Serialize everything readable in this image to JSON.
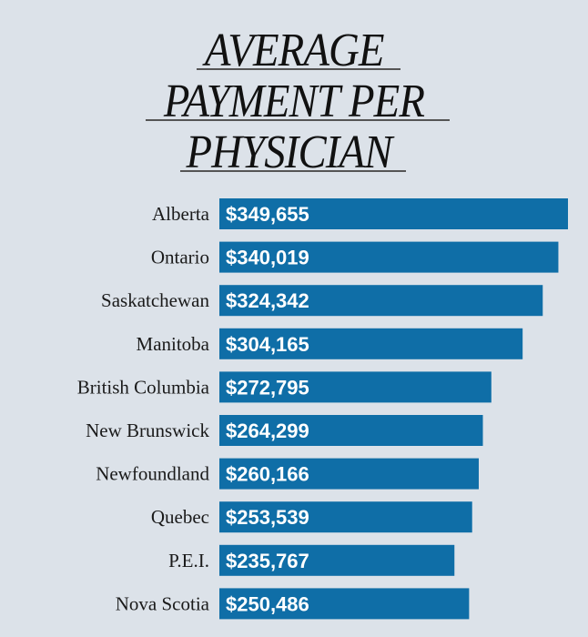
{
  "chart_data": {
    "type": "bar",
    "orientation": "horizontal",
    "title": "AVERAGE PAYMENT PER PHYSICIAN",
    "title_lines": [
      "AVERAGE",
      "PAYMENT PER",
      "PHYSICIAN"
    ],
    "categories": [
      "Alberta",
      "Ontario",
      "Saskatchewan",
      "Manitoba",
      "British Columbia",
      "New Brunswick",
      "Newfoundland",
      "Quebec",
      "P.E.I.",
      "Nova Scotia"
    ],
    "values": [
      349655,
      340019,
      324342,
      304165,
      272795,
      264299,
      260166,
      253539,
      235767,
      250486
    ],
    "value_labels": [
      "$349,655",
      "$340,019",
      "$324,342",
      "$304,165",
      "$272,795",
      "$264,299",
      "$260,166",
      "$253,539",
      "$235,767",
      "$250,486"
    ],
    "xlabel": "",
    "ylabel": "",
    "xlim": [
      0,
      349655
    ],
    "grid": false,
    "bar_color": "#0f6ea7"
  }
}
